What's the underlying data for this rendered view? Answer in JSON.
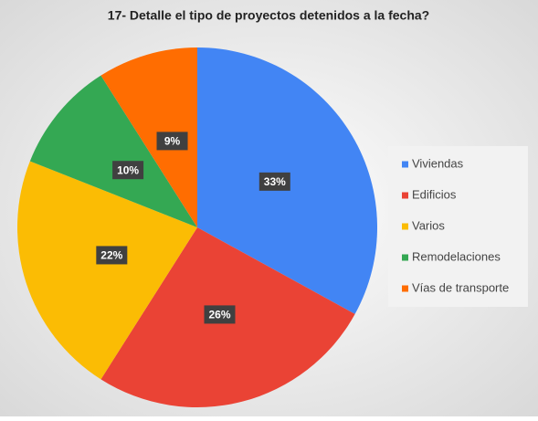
{
  "chart_data": {
    "type": "pie",
    "title": "17- Detalle el tipo de proyectos detenidos a la fecha?",
    "categories": [
      "Viviendas",
      "Edificios",
      "Varios",
      "Remodelaciones",
      "Vías de transporte"
    ],
    "values": [
      33,
      26,
      22,
      10,
      9
    ],
    "value_labels": [
      "33%",
      "26%",
      "22%",
      "10%",
      "9%"
    ],
    "colors": [
      "#4285f4",
      "#ea4335",
      "#fbbc04",
      "#34a853",
      "#ff6d01"
    ],
    "legend": "right"
  }
}
